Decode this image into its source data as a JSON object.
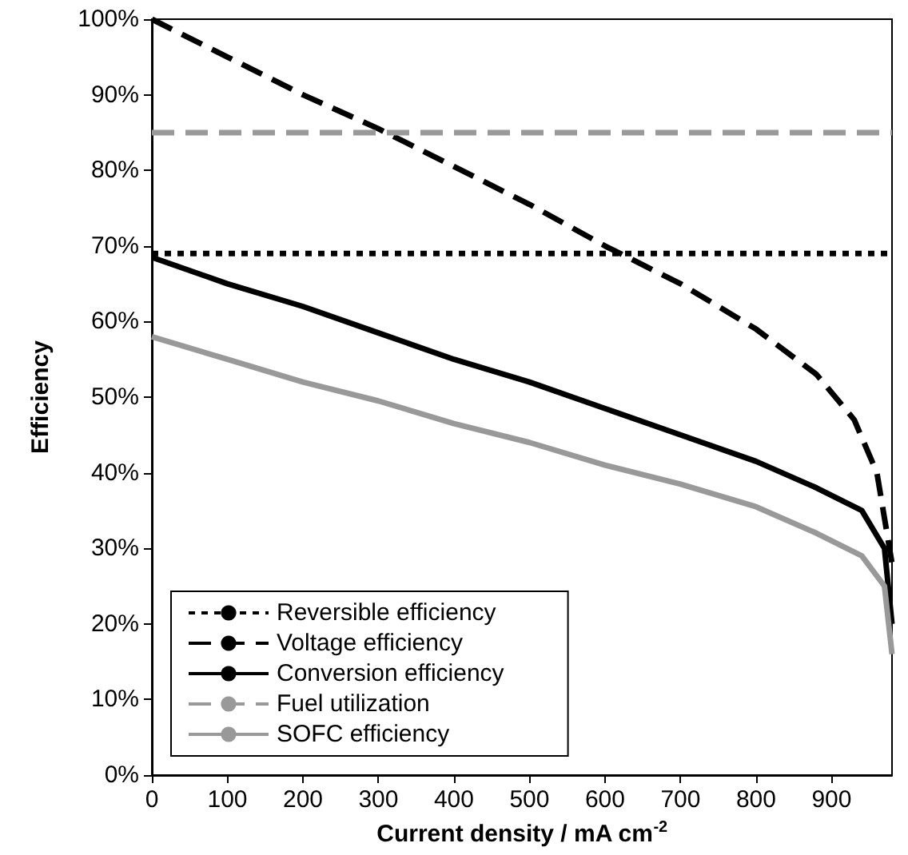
{
  "chart_data": {
    "type": "line",
    "xlabel": "Current density / mA cm$^{-2}$",
    "ylabel": "Efficiency",
    "xlim": [
      0,
      980
    ],
    "xticks": [
      0,
      100,
      200,
      300,
      400,
      500,
      600,
      700,
      800,
      900
    ],
    "ylim": [
      0,
      100
    ],
    "yticks": [
      {
        "value": 0,
        "label": "0%"
      },
      {
        "value": 10,
        "label": "10%"
      },
      {
        "value": 20,
        "label": "20%"
      },
      {
        "value": 30,
        "label": "30%"
      },
      {
        "value": 40,
        "label": "40%"
      },
      {
        "value": 50,
        "label": "50%"
      },
      {
        "value": 60,
        "label": "60%"
      },
      {
        "value": 70,
        "label": "70%"
      },
      {
        "value": 80,
        "label": "80%"
      },
      {
        "value": 90,
        "label": "90%"
      },
      {
        "value": 100,
        "label": "100%"
      }
    ],
    "grid": false,
    "legend": "bottom left",
    "marker": "none",
    "series": [
      {
        "name": "Reversible efficiency",
        "color": "#000000",
        "line_style": "dotted",
        "x": [
          0,
          980
        ],
        "values": [
          69,
          69
        ]
      },
      {
        "name": "Voltage efficiency",
        "color": "#000000",
        "line_style": "dashed",
        "x": [
          0,
          100,
          200,
          300,
          400,
          500,
          600,
          700,
          800,
          880,
          930,
          960,
          980
        ],
        "values": [
          100,
          95,
          90,
          85.5,
          80.5,
          75.5,
          70,
          65,
          59,
          53,
          47,
          40,
          28
        ]
      },
      {
        "name": "Conversion efficiency",
        "color": "#000000",
        "line_style": "solid",
        "x": [
          0,
          100,
          200,
          300,
          400,
          500,
          600,
          700,
          800,
          880,
          940,
          970,
          980
        ],
        "values": [
          68.5,
          65,
          62,
          58.5,
          55,
          52,
          48.5,
          45,
          41.5,
          38,
          35,
          30,
          20
        ]
      },
      {
        "name": "Fuel utilization",
        "color": "#999999",
        "line_style": "dashed",
        "x": [
          0,
          980
        ],
        "values": [
          85,
          85
        ]
      },
      {
        "name": "SOFC efficiency",
        "color": "#999999",
        "line_style": "solid",
        "x": [
          0,
          100,
          200,
          300,
          400,
          500,
          600,
          700,
          800,
          880,
          940,
          970,
          980
        ],
        "values": [
          58,
          55,
          52,
          49.5,
          46.5,
          44,
          41,
          38.5,
          35.5,
          32,
          29,
          25,
          16
        ]
      }
    ]
  }
}
